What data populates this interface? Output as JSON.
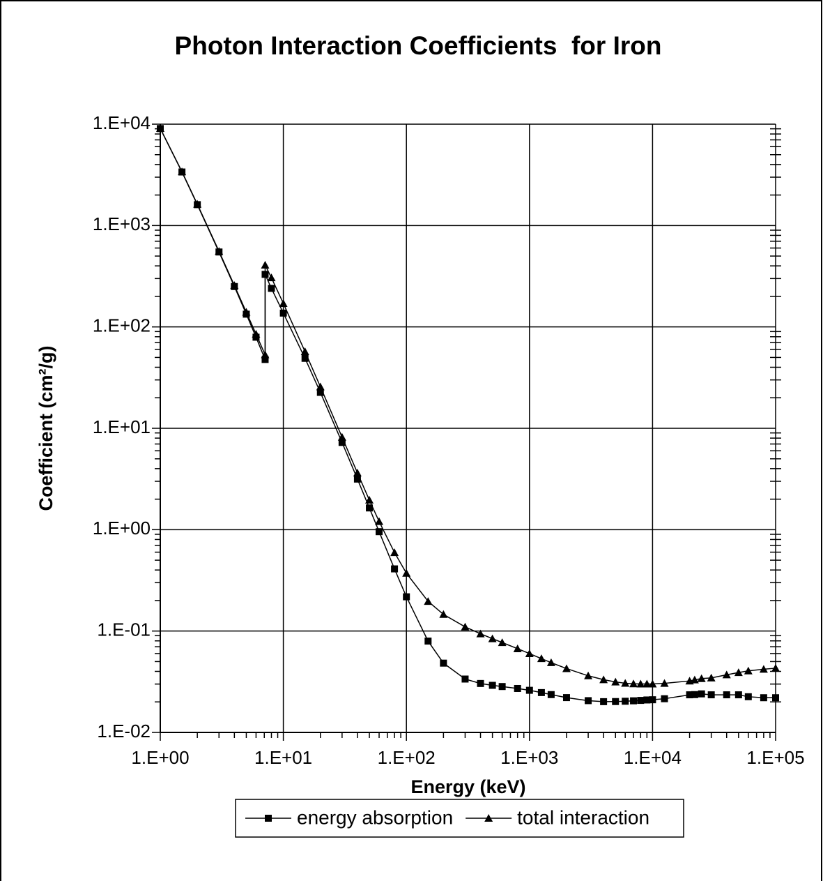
{
  "chart_data": {
    "type": "line",
    "title": "Photon Interaction Coefficients  for Iron",
    "x_label": "Energy (keV)",
    "y_label": "Coefficient (cm²/g)",
    "x": [
      1,
      1.5,
      2,
      3,
      4,
      5,
      6,
      7.112,
      7.112,
      8,
      10,
      15,
      20,
      30,
      40,
      50,
      60,
      80,
      100,
      150,
      200,
      300,
      400,
      500,
      600,
      800,
      1000,
      1250,
      1500,
      2000,
      3000,
      4000,
      5000,
      6000,
      7000,
      8000,
      9000,
      10000,
      12500,
      20000,
      22000,
      25000,
      30000,
      40000,
      50000,
      60000,
      80000,
      100000
    ],
    "series": [
      {
        "name": "energy absorption",
        "color": "#000000",
        "marker": "square",
        "values": [
          9052,
          3375,
          1607,
          548.4,
          250.3,
          133.6,
          79.15,
          47.73,
          330,
          240,
          136.9,
          48.96,
          22.6,
          7.251,
          3.155,
          1.638,
          0.9555,
          0.4104,
          0.2177,
          0.07961,
          0.04825,
          0.03361,
          0.03039,
          0.02914,
          0.02836,
          0.02714,
          0.02603,
          0.02472,
          0.02361,
          0.02205,
          0.02058,
          0.02011,
          0.02016,
          0.0203,
          0.0205,
          0.0207,
          0.0209,
          0.021,
          0.0215,
          0.0235,
          0.0236,
          0.024,
          0.0235,
          0.0235,
          0.0235,
          0.0225,
          0.022,
          0.022
        ]
      },
      {
        "name": "total interaction",
        "color": "#000000",
        "marker": "triangle",
        "values": [
          9085,
          3399,
          1626,
          557.6,
          256.7,
          139.8,
          84.84,
          53.19,
          407.6,
          305.6,
          170.6,
          57.08,
          25.68,
          8.176,
          3.629,
          1.958,
          1.205,
          0.5952,
          0.3717,
          0.1964,
          0.146,
          0.1099,
          0.094,
          0.08414,
          0.07704,
          0.06699,
          0.05995,
          0.0535,
          0.04883,
          0.04265,
          0.03621,
          0.03312,
          0.03146,
          0.03057,
          0.0302,
          0.0301,
          0.0301,
          0.0301,
          0.0305,
          0.0322,
          0.033,
          0.034,
          0.0345,
          0.037,
          0.039,
          0.0405,
          0.042,
          0.043
        ]
      }
    ],
    "xlim": [
      1,
      100000
    ],
    "ylim": [
      0.01,
      10000
    ],
    "log_x": true,
    "log_y": true,
    "grid": true,
    "legend": "bottom",
    "xticks": [
      {
        "value": 1,
        "label": "1.E+00"
      },
      {
        "value": 10,
        "label": "1.E+01"
      },
      {
        "value": 100,
        "label": "1.E+02"
      },
      {
        "value": 1000,
        "label": "1.E+03"
      },
      {
        "value": 10000,
        "label": "1.E+04"
      },
      {
        "value": 100000,
        "label": "1.E+05"
      }
    ],
    "yticks": [
      {
        "value": 0.01,
        "label": "1.E-02"
      },
      {
        "value": 0.1,
        "label": "1.E-01"
      },
      {
        "value": 1,
        "label": "1.E+00"
      },
      {
        "value": 10,
        "label": "1.E+01"
      },
      {
        "value": 100,
        "label": "1.E+02"
      },
      {
        "value": 1000,
        "label": "1.E+03"
      },
      {
        "value": 10000,
        "label": "1.E+04"
      }
    ]
  }
}
